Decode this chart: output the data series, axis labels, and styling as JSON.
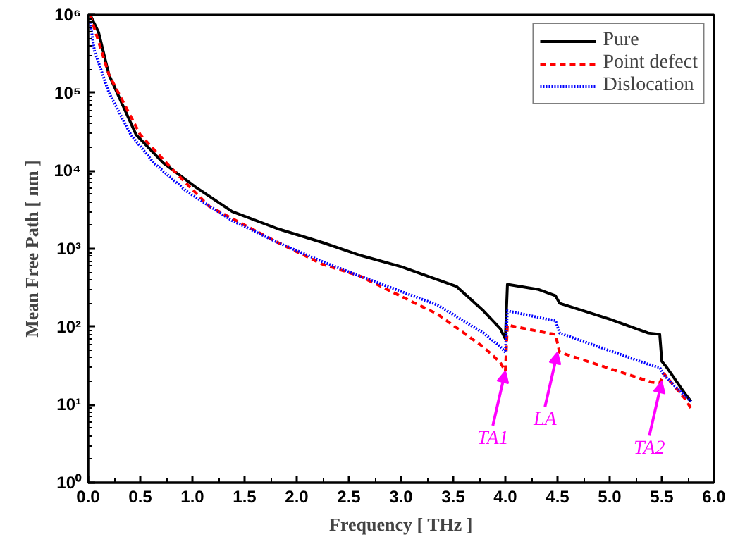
{
  "chart_data": {
    "type": "line",
    "xlabel": "Frequency [ THz ]",
    "ylabel": "Mean Free Path [ nm ]",
    "log": "y",
    "xlim": [
      0,
      6
    ],
    "xticks": [
      {
        "value": 0,
        "label": "0.0"
      },
      {
        "value": 0.5,
        "label": "0.5"
      },
      {
        "value": 1,
        "label": "1.0"
      },
      {
        "value": 1.5,
        "label": "1.5"
      },
      {
        "value": 2,
        "label": "2.0"
      },
      {
        "value": 2.5,
        "label": "2.5"
      },
      {
        "value": 3,
        "label": "3.0"
      },
      {
        "value": 3.5,
        "label": "3.5"
      },
      {
        "value": 4,
        "label": "4.0"
      },
      {
        "value": 4.5,
        "label": "4.5"
      },
      {
        "value": 5,
        "label": "5.0"
      },
      {
        "value": 5.5,
        "label": "5.5"
      },
      {
        "value": 6,
        "label": "6.0"
      }
    ],
    "ylim": [
      1,
      1000000
    ],
    "yticks": [
      {
        "value": 1,
        "label": "10⁰"
      },
      {
        "value": 10,
        "label": "10¹"
      },
      {
        "value": 100,
        "label": "10²"
      },
      {
        "value": 1000,
        "label": "10³"
      },
      {
        "value": 10000,
        "label": "10⁴"
      },
      {
        "value": 100000,
        "label": "10⁵"
      },
      {
        "value": 1000000,
        "label": "10⁶"
      }
    ],
    "grid": false,
    "legend": "top right",
    "marker": "none",
    "series": [
      {
        "name": "Pure",
        "color": "#000000",
        "line_style": "solid",
        "x": [
          0.02,
          0.1,
          0.2,
          0.46,
          0.72,
          1.03,
          1.38,
          1.82,
          2.25,
          2.6,
          3.0,
          3.53,
          3.79,
          3.95,
          4.0,
          4.02,
          4.32,
          4.48,
          4.52,
          5.0,
          5.37,
          5.48,
          5.5,
          5.54,
          5.72,
          5.78
        ],
        "values": [
          1000000,
          600000,
          170000,
          29000,
          12600,
          6200,
          3000,
          1800,
          1200,
          830,
          590,
          330,
          160,
          95,
          70,
          350,
          300,
          250,
          200,
          125,
          83,
          80,
          36,
          31,
          14,
          11
        ]
      },
      {
        "name": "Point defect",
        "color": "#ff0000",
        "line_style": "dashed",
        "x": [
          0.02,
          0.2,
          0.5,
          0.8,
          1.16,
          1.82,
          2.25,
          2.6,
          3.35,
          3.79,
          3.95,
          4.0,
          4.02,
          4.4,
          4.48,
          4.52,
          5.4,
          5.48,
          5.52,
          5.72,
          5.78
        ],
        "values": [
          1000000,
          170000,
          29000,
          10700,
          3500,
          1200,
          630,
          450,
          145,
          55,
          35,
          27,
          105,
          83,
          80,
          47,
          19.5,
          19,
          25,
          12,
          9
        ]
      },
      {
        "name": "Dislocation",
        "color": "#0000ff",
        "line_style": "dotted",
        "x": [
          0.02,
          0.06,
          0.2,
          0.41,
          0.63,
          0.94,
          1.38,
          1.82,
          2.25,
          2.6,
          3.35,
          3.79,
          3.95,
          4.0,
          4.02,
          4.4,
          4.48,
          4.52,
          5.4,
          5.48,
          5.52,
          5.72,
          5.78
        ],
        "values": [
          800000,
          350000,
          100000,
          29000,
          12600,
          5500,
          2300,
          1200,
          680,
          450,
          190,
          83,
          56,
          47,
          160,
          125,
          120,
          83,
          32,
          30,
          24,
          13,
          11
        ]
      }
    ],
    "annotations": [
      {
        "text": "TA1",
        "x": 4.0,
        "y": 27
      },
      {
        "text": "LA",
        "x": 4.5,
        "y": 47
      },
      {
        "text": "TA2",
        "x": 5.5,
        "y": 20
      }
    ]
  }
}
